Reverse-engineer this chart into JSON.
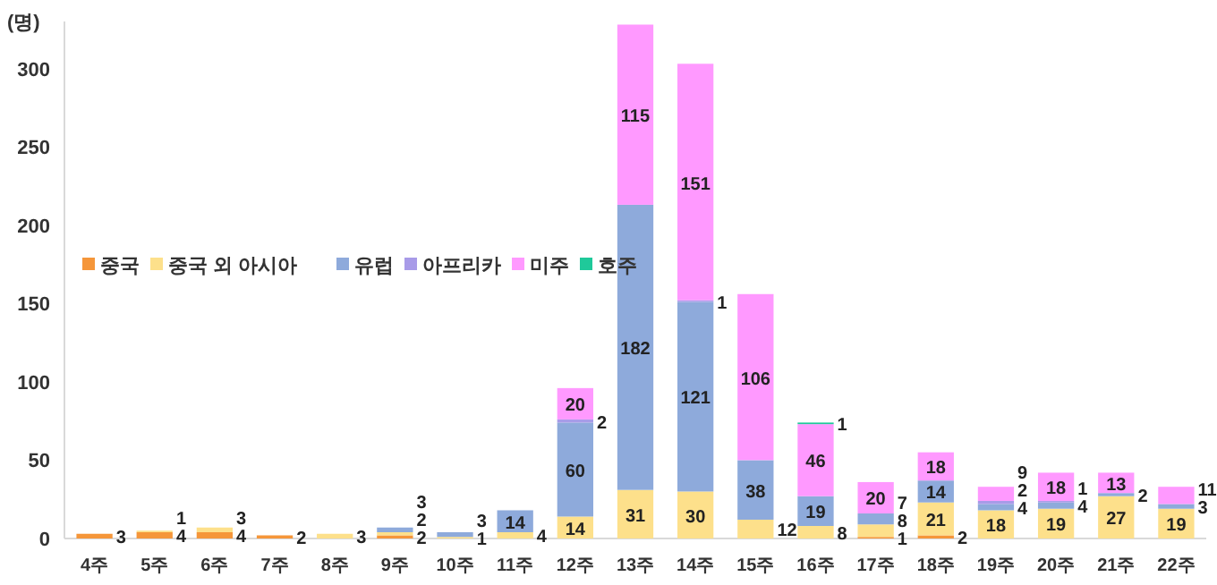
{
  "chart_data": {
    "type": "bar",
    "stacked": true,
    "ylabel": "(명)",
    "categories": [
      "4주",
      "5주",
      "6주",
      "7주",
      "8주",
      "9주",
      "10주",
      "11주",
      "12주",
      "13주",
      "14주",
      "15주",
      "16주",
      "17주",
      "18주",
      "19주",
      "20주",
      "21주",
      "22주"
    ],
    "series": [
      {
        "name": "중국",
        "color": "#f5963a",
        "values": [
          3,
          4,
          4,
          2,
          null,
          2,
          null,
          null,
          null,
          null,
          null,
          null,
          null,
          1,
          2,
          null,
          null,
          null,
          null
        ]
      },
      {
        "name": "중국 외 아시아",
        "color": "#fde08b",
        "values": [
          null,
          1,
          3,
          null,
          3,
          2,
          1,
          4,
          14,
          31,
          30,
          12,
          8,
          8,
          21,
          18,
          19,
          27,
          19
        ]
      },
      {
        "name": "유럽",
        "color": "#8eaadb",
        "values": [
          null,
          null,
          null,
          null,
          null,
          3,
          3,
          14,
          60,
          182,
          121,
          38,
          19,
          7,
          14,
          4,
          4,
          2,
          3
        ]
      },
      {
        "name": "아프리카",
        "color": "#a89be8",
        "values": [
          null,
          null,
          null,
          null,
          null,
          null,
          null,
          null,
          2,
          null,
          1,
          null,
          null,
          null,
          null,
          2,
          1,
          null,
          null
        ]
      },
      {
        "name": "미주",
        "color": "#ff99ff",
        "values": [
          null,
          null,
          null,
          null,
          null,
          null,
          null,
          null,
          20,
          115,
          151,
          106,
          46,
          20,
          18,
          9,
          18,
          13,
          11
        ]
      },
      {
        "name": "호주",
        "color": "#1fc99a",
        "values": [
          null,
          null,
          null,
          null,
          null,
          null,
          null,
          null,
          null,
          null,
          null,
          null,
          1,
          null,
          null,
          null,
          null,
          null,
          null
        ]
      }
    ],
    "ylim": [
      0,
      330
    ],
    "yticks": [
      0,
      50,
      100,
      150,
      200,
      250,
      300
    ],
    "grid": false,
    "legend": "left",
    "data_labels": true
  }
}
